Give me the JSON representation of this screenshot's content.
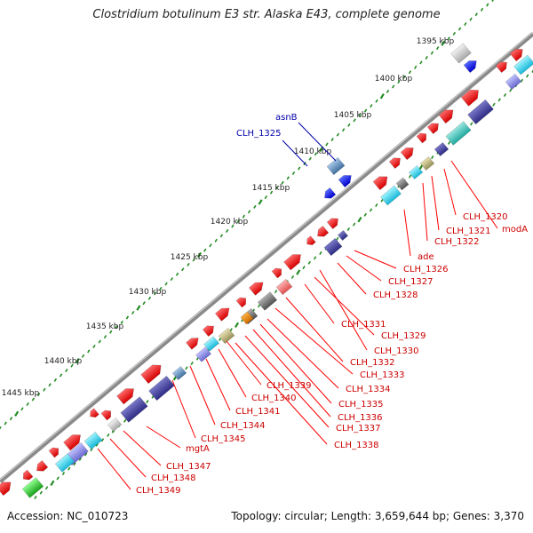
{
  "title": "Clostridium botulinum E3 str. Alaska E43, complete genome",
  "accession": "Accession: NC_010723",
  "summary": "Topology: circular; Length: 3,659,644 bp; Genes: 3,370",
  "colors": {
    "backbone": "#8a8a8a",
    "gene_arrow": "#ff0000",
    "label_red": "#cc0000",
    "label_blue": "#0000aa",
    "tick": "#228b22"
  },
  "scale_labels": [
    "1395 kbp",
    "1400 kbp",
    "1405 kbp",
    "1410 kbp",
    "1415 kbp",
    "1420 kbp",
    "1425 kbp",
    "1430 kbp",
    "1435 kbp",
    "1440 kbp",
    "1445 kbp"
  ],
  "gene_labels_red": [
    "CLH_1320",
    "modA",
    "CLH_1321",
    "CLH_1322",
    "ade",
    "CLH_1326",
    "CLH_1327",
    "CLH_1328",
    "CLH_1331",
    "CLH_1329",
    "CLH_1330",
    "CLH_1332",
    "CLH_1333",
    "CLH_1334",
    "CLH_1339",
    "CLH_1340",
    "CLH_1335",
    "CLH_1336",
    "CLH_1341",
    "CLH_1337",
    "CLH_1344",
    "CLH_1345",
    "CLH_1338",
    "mgtA",
    "CLH_1347",
    "CLH_1348",
    "CLH_1349"
  ],
  "gene_labels_blue": [
    "asnB",
    "CLH_1325"
  ]
}
